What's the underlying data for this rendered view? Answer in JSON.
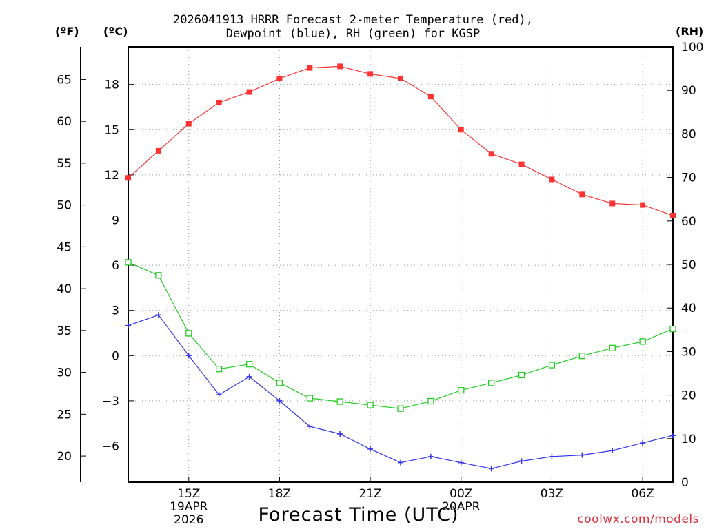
{
  "chart_data": {
    "type": "line",
    "title_line1": "2026041913 HRRR Forecast 2-meter Temperature (red),",
    "title_line2": "Dewpoint (blue), RH (green) for KGSP",
    "xlabel": "Forecast Time (UTC)",
    "credit": "coolwx.com/models",
    "units": {
      "left_f": "(ºF)",
      "left_c": "(ºC)",
      "right": "(RH)"
    },
    "x_hours": [
      13,
      14,
      15,
      16,
      17,
      18,
      19,
      20,
      21,
      22,
      23,
      24,
      25,
      26,
      27,
      28,
      29,
      30,
      31
    ],
    "x_ticks": [
      {
        "hour": 15,
        "lines": [
          "15Z",
          "19APR",
          "2026"
        ]
      },
      {
        "hour": 18,
        "lines": [
          "18Z"
        ]
      },
      {
        "hour": 21,
        "lines": [
          "21Z"
        ]
      },
      {
        "hour": 24,
        "lines": [
          "00Z",
          "20APR"
        ]
      },
      {
        "hour": 27,
        "lines": [
          "03Z"
        ]
      },
      {
        "hour": 30,
        "lines": [
          "06Z"
        ]
      }
    ],
    "xlim": [
      13,
      31
    ],
    "celsius_axis": {
      "ylim": [
        -8.4,
        20.5
      ],
      "ticks": [
        -6,
        -3,
        0,
        3,
        6,
        9,
        12,
        15,
        18
      ],
      "labels": [
        "−6",
        "−3",
        "0",
        "3",
        "6",
        "9",
        "12",
        "15",
        "18"
      ]
    },
    "fahrenheit_axis": {
      "ticks": [
        20,
        25,
        30,
        35,
        40,
        45,
        50,
        55,
        60,
        65
      ]
    },
    "rh_axis": {
      "ylim": [
        0,
        100
      ],
      "ticks": [
        0,
        10,
        20,
        30,
        40,
        50,
        60,
        70,
        80,
        90,
        100
      ]
    },
    "series": [
      {
        "name": "Temperature",
        "unit": "C",
        "color": "#ff3333",
        "marker": "filled-square",
        "values": [
          11.8,
          13.6,
          15.4,
          16.8,
          17.5,
          18.4,
          19.1,
          19.2,
          18.7,
          18.4,
          17.2,
          15.0,
          13.4,
          12.7,
          11.7,
          10.7,
          10.1,
          10.0,
          9.3
        ]
      },
      {
        "name": "Dewpoint",
        "unit": "C",
        "color": "#3333ee",
        "marker": "plus",
        "values": [
          2.0,
          2.7,
          0.0,
          -2.6,
          -1.4,
          -3.0,
          -4.7,
          -5.2,
          -6.2,
          -7.1,
          -6.7,
          -7.1,
          -7.5,
          -7.0,
          -6.7,
          -6.6,
          -6.3,
          -5.8,
          -5.3
        ]
      },
      {
        "name": "RH",
        "unit": "%",
        "color": "#22cc22",
        "marker": "open-square",
        "values": [
          50.5,
          47.5,
          34.2,
          26.0,
          27.1,
          22.8,
          19.3,
          18.5,
          17.7,
          16.9,
          18.6,
          21.1,
          22.8,
          24.6,
          26.9,
          29.0,
          30.8,
          32.3,
          35.2
        ]
      }
    ],
    "grid": true
  }
}
